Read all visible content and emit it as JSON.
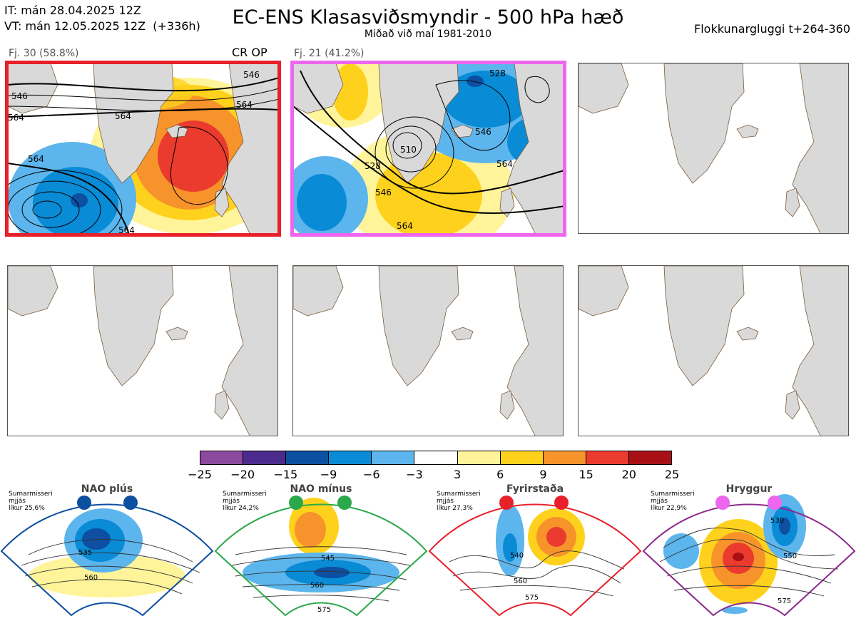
{
  "header": {
    "it_line": "IT: mán 28.04.2025 12Z",
    "vt_line": "VT: mán 12.05.2025 12Z  (+336h)",
    "title": "EC-ENS Klasasviðsmyndir - 500 hPa hæð",
    "subtitle": "Miðað við maí 1981-2010",
    "window": "Flokkunargluggi t+264-360"
  },
  "clusters": [
    {
      "label": "Fj. 30 (58.8%)",
      "tag": "CR OP",
      "frame_color": "#e8202a",
      "contour_labels": [
        "546",
        "546",
        "564",
        "564",
        "564",
        "564",
        "564"
      ]
    },
    {
      "label": "Fj. 21 (41.2%)",
      "tag": "",
      "frame_color": "#ee66ee",
      "contour_labels": [
        "528",
        "510",
        "528",
        "546",
        "546",
        "564",
        "564"
      ]
    }
  ],
  "colorbar": {
    "ticks": [
      "−25",
      "−20",
      "−15",
      "−9",
      "−6",
      "−3",
      "3",
      "6",
      "9",
      "15",
      "20",
      "25"
    ],
    "colors": [
      "#8c4a9e",
      "#4b2c8c",
      "#0d4fa0",
      "#0a8bd6",
      "#5cb5ec",
      "#ffffff",
      "#fff49a",
      "#fed21c",
      "#f7932b",
      "#ea3b2e",
      "#a81016"
    ]
  },
  "regimes": [
    {
      "name": "NAO plús",
      "note": "Sumarmisseri\nmjjás\nlíkur 25,6%",
      "dot_color": "#0d4fa0",
      "frame_color": "#0d4fa0",
      "labels": [
        "535",
        "560"
      ]
    },
    {
      "name": "NAO mínus",
      "note": "Sumarmisseri\nmjjás\nlíkur 24,2%",
      "dot_color": "#2aa84a",
      "frame_color": "#2aa84a",
      "labels": [
        "545",
        "560",
        "575"
      ]
    },
    {
      "name": "Fyrirstaða",
      "note": "Sumarmisseri\nmjjás\nlíkur 27,3%",
      "dot_color": "#e8202a",
      "frame_color": "#e8202a",
      "labels": [
        "540",
        "560",
        "575"
      ]
    },
    {
      "name": "Hryggur",
      "note": "Sumarmisseri\nmjjás\nlíkur 22,9%",
      "dot_color": "#ee66ee",
      "frame_color": "#8c2a8c",
      "labels": [
        "530",
        "550",
        "575"
      ]
    }
  ]
}
